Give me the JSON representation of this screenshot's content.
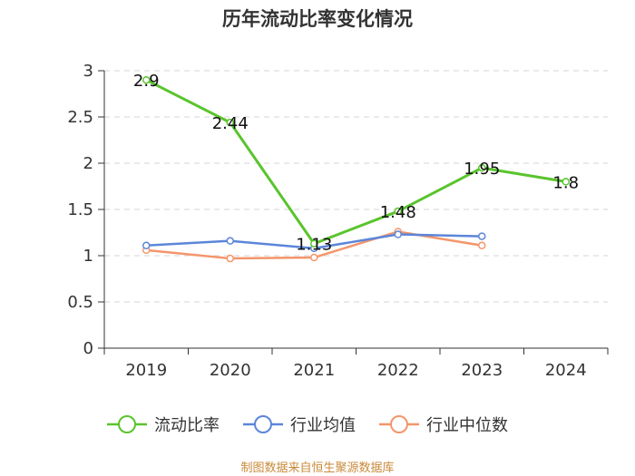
{
  "chart_data": {
    "type": "line",
    "title": "历年流动比率变化情况",
    "categories": [
      "2019",
      "2020",
      "2021",
      "2022",
      "2023",
      "2024"
    ],
    "ylim": [
      0,
      3
    ],
    "yticks": [
      "0",
      "0.5",
      "1",
      "1.5",
      "2",
      "2.5",
      "3"
    ],
    "grid": true,
    "legend_position": "bottom",
    "series": [
      {
        "name": "流动比率",
        "color": "#5ac42d",
        "values": [
          2.9,
          2.44,
          1.13,
          1.48,
          1.95,
          1.8
        ],
        "labels": [
          "2.9",
          "2.44",
          "1.13",
          "1.48",
          "1.95",
          "1.8"
        ]
      },
      {
        "name": "行业均值",
        "color": "#5b86d9",
        "values": [
          1.11,
          1.16,
          1.08,
          1.23,
          1.21,
          null
        ]
      },
      {
        "name": "行业中位数",
        "color": "#f4956a",
        "values": [
          1.06,
          0.97,
          0.98,
          1.26,
          1.11,
          null
        ]
      }
    ],
    "source": "制图数据来自恒生聚源数据库"
  }
}
